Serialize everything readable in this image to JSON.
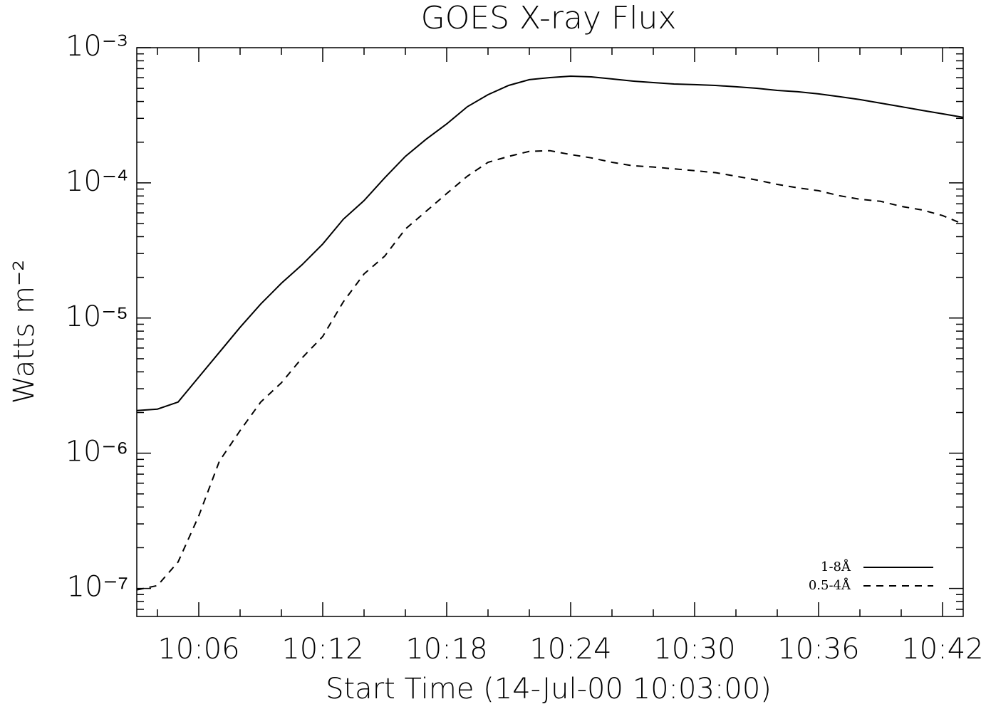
{
  "chart_data": {
    "type": "line",
    "title": "GOES X-ray Flux",
    "xlabel": "Start Time (14-Jul-00 10:03:00)",
    "ylabel": "Watts m⁻²",
    "log_y": true,
    "legend": "lower right",
    "x": [
      "10:03",
      "10:04",
      "10:05",
      "10:06",
      "10:07",
      "10:08",
      "10:09",
      "10:10",
      "10:11",
      "10:12",
      "10:13",
      "10:14",
      "10:15",
      "10:16",
      "10:17",
      "10:18",
      "10:19",
      "10:20",
      "10:21",
      "10:22",
      "10:23",
      "10:24",
      "10:25",
      "10:26",
      "10:27",
      "10:28",
      "10:29",
      "10:30",
      "10:31",
      "10:32",
      "10:33",
      "10:34",
      "10:35",
      "10:36",
      "10:37",
      "10:38",
      "10:39",
      "10:40",
      "10:41",
      "10:42",
      "10:43"
    ],
    "xlim": [
      "10:03",
      "10:43"
    ],
    "xticks": [
      "10:06",
      "10:12",
      "10:18",
      "10:24",
      "10:30",
      "10:36",
      "10:42"
    ],
    "ylim": [
      6.2e-08,
      0.001
    ],
    "yticks": [
      {
        "value": 1e-07,
        "label": "10⁻⁷"
      },
      {
        "value": 1e-06,
        "label": "10⁻⁶"
      },
      {
        "value": 1e-05,
        "label": "10⁻⁵"
      },
      {
        "value": 0.0001,
        "label": "10⁻⁴"
      },
      {
        "value": 0.001,
        "label": "10⁻³"
      }
    ],
    "series": [
      {
        "name": "1-8Å",
        "color": "#000000",
        "dash": "solid",
        "values": [
          2.07e-06,
          2.12e-06,
          2.39e-06,
          3.66e-06,
          5.59e-06,
          8.54e-06,
          1.27e-05,
          1.81e-05,
          2.48e-05,
          3.53e-05,
          5.39e-05,
          7.39e-05,
          0.000109,
          0.000157,
          0.00021,
          0.000273,
          0.000366,
          0.000449,
          0.000526,
          0.00058,
          0.000601,
          0.000616,
          0.000608,
          0.000587,
          0.000566,
          0.000552,
          0.000539,
          0.000533,
          0.000526,
          0.000514,
          0.000501,
          0.000483,
          0.000472,
          0.000455,
          0.000434,
          0.000413,
          0.000389,
          0.000366,
          0.000344,
          0.000324,
          0.000305
        ]
      },
      {
        "name": "0.5-4Å",
        "color": "#000000",
        "dash": "dashed",
        "values": [
          9.75e-08,
          1.05e-07,
          1.57e-07,
          3.44e-07,
          8.75e-07,
          1.47e-06,
          2.39e-06,
          3.32e-06,
          5.07e-06,
          7.3e-06,
          1.32e-05,
          2.12e-05,
          2.87e-05,
          4.55e-05,
          6.16e-05,
          8.34e-05,
          0.000112,
          0.000142,
          0.000157,
          0.000171,
          0.000173,
          0.000162,
          0.000153,
          0.000142,
          0.000134,
          0.000131,
          0.000127,
          0.000123,
          0.000119,
          0.000112,
          0.000105,
          9.75e-05,
          9.19e-05,
          8.75e-05,
          8.04e-05,
          7.57e-05,
          7.3e-05,
          6.7e-05,
          6.31e-05,
          5.73e-05,
          4.95e-05
        ]
      }
    ]
  }
}
